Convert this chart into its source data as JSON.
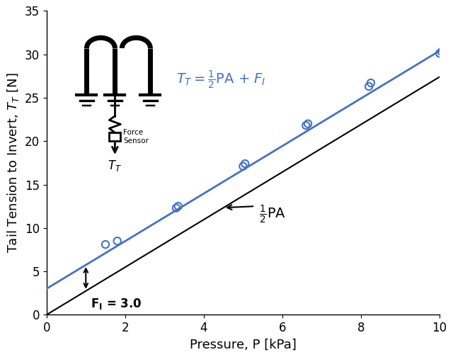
{
  "title": "",
  "xlabel": "Pressure, P [kPa]",
  "ylabel": "Tail Tension to Invert, $T_T$ [N]",
  "xlim": [
    0,
    10
  ],
  "ylim": [
    0,
    35
  ],
  "xticks": [
    0,
    2,
    4,
    6,
    8,
    10
  ],
  "yticks": [
    0,
    5,
    10,
    15,
    20,
    25,
    30,
    35
  ],
  "data_x": [
    1.5,
    1.8,
    3.3,
    3.35,
    5.0,
    5.05,
    6.6,
    6.65,
    8.2,
    8.25,
    10.0,
    10.05
  ],
  "data_y": [
    8.1,
    8.5,
    12.3,
    12.5,
    17.1,
    17.4,
    21.8,
    22.0,
    26.3,
    26.7,
    30.1,
    30.3
  ],
  "slope": 2.74,
  "intercept": 3.0,
  "line_color": "#4472C4",
  "marker_color": "#4472C4",
  "black_line_color": "#000000",
  "background_color": "#ffffff",
  "FI": 3.0
}
